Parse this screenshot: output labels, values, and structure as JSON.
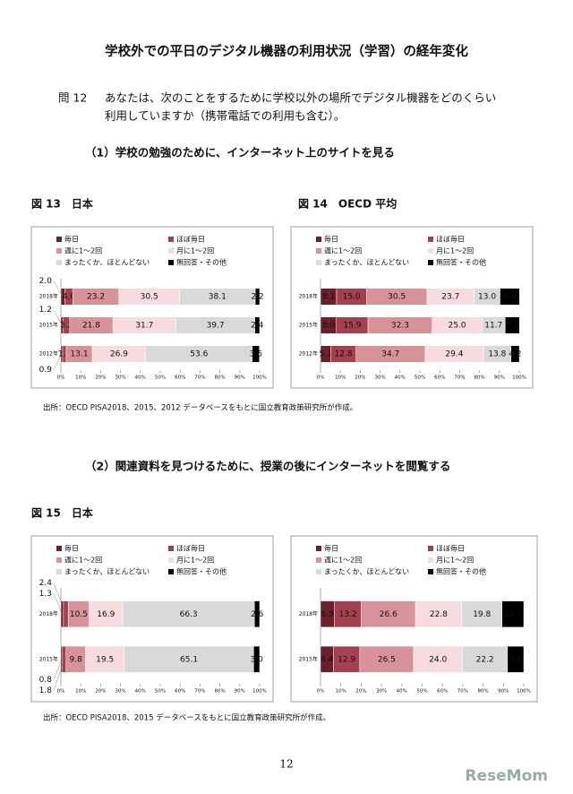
{
  "header": {
    "title": "学校外での平日のデジタル機器の利用状況（学習）の経年変化"
  },
  "question": {
    "number": "問 12",
    "text_line1": "あなたは、次のことをするために学校以外の場所でデジタル機器をどのくらい",
    "text_line2": "利用していますか（携帯電話での利用も含む）。"
  },
  "sections": [
    {
      "heading": "（1）学校の勉強のために、インターネット上のサイトを見る",
      "source": "出所：OECD PISA2018、2015、2012 データベースをもとに国立教育政策研究所が作成。"
    },
    {
      "heading": "（2）関連資料を見つけるために、授業の後にインターネットを閲覧する",
      "source": "出所：OECD PISA2018、2015 データベースをもとに国立教育政策研究所が作成。"
    }
  ],
  "page_number": "12",
  "watermark": "ReseMom",
  "chart_data": [
    {
      "type": "bar",
      "orientation": "horizontal",
      "stacked": true,
      "title": "図 13　日本",
      "categories": [
        "2018年",
        "2015年",
        "2012年"
      ],
      "series": [
        {
          "name": "毎日",
          "color": "#6d1f2b",
          "values": [
            2.0,
            1.2,
            0.9
          ],
          "value_labels": [
            "2.0",
            "1.2",
            "0.9"
          ]
        },
        {
          "name": "ほぼ毎日",
          "color": "#a5404f",
          "values": [
            4.0,
            3.2,
            1.8
          ],
          "value_labels": [
            "4.0",
            "3.2",
            "1.8"
          ]
        },
        {
          "name": "週に1～2回",
          "color": "#d8939a",
          "values": [
            23.2,
            21.8,
            13.1
          ],
          "value_labels": [
            "23.2",
            "21.8",
            "13.1"
          ]
        },
        {
          "name": "月に1～2回",
          "color": "#f6dcdf",
          "values": [
            30.5,
            31.7,
            26.9
          ],
          "value_labels": [
            "30.5",
            "31.7",
            "26.9"
          ]
        },
        {
          "name": "まったくか、ほとんどない",
          "color": "#d9d9d9",
          "values": [
            38.1,
            39.7,
            53.6
          ],
          "value_labels": [
            "38.1",
            "39.7",
            "53.6"
          ]
        },
        {
          "name": "無回答・その他",
          "color": "#000000",
          "values": [
            2.2,
            2.4,
            3.6
          ],
          "value_labels": [
            "2.2",
            "2.4",
            "3.6"
          ]
        }
      ],
      "xlim": [
        0,
        100
      ],
      "xticks": [
        {
          "value": 0,
          "label": "0%"
        },
        {
          "value": 10,
          "label": "10%"
        },
        {
          "value": 20,
          "label": "20%"
        },
        {
          "value": 30,
          "label": "30%"
        },
        {
          "value": 40,
          "label": "40%"
        },
        {
          "value": 50,
          "label": "50%"
        },
        {
          "value": 60,
          "label": "60%"
        },
        {
          "value": 70,
          "label": "70%"
        },
        {
          "value": 80,
          "label": "80%"
        },
        {
          "value": 90,
          "label": "90%"
        },
        {
          "value": 100,
          "label": "100%"
        }
      ]
    },
    {
      "type": "bar",
      "orientation": "horizontal",
      "stacked": true,
      "title": "図 14　OECD 平均",
      "categories": [
        "2018年",
        "2015年",
        "2012年"
      ],
      "series": [
        {
          "name": "毎日",
          "color": "#6d1f2b",
          "values": [
            8.1,
            8.0,
            5.1
          ],
          "value_labels": [
            "8.1",
            "8.0",
            "5.1"
          ]
        },
        {
          "name": "ほぼ毎日",
          "color": "#a5404f",
          "values": [
            15.0,
            15.9,
            12.8
          ],
          "value_labels": [
            "15.0",
            "15.9",
            "12.8"
          ]
        },
        {
          "name": "週に1～2回",
          "color": "#d8939a",
          "values": [
            30.5,
            32.3,
            34.7
          ],
          "value_labels": [
            "30.5",
            "32.3",
            "34.7"
          ]
        },
        {
          "name": "月に1～2回",
          "color": "#f6dcdf",
          "values": [
            23.7,
            25.0,
            29.4
          ],
          "value_labels": [
            "23.7",
            "25.0",
            "29.4"
          ]
        },
        {
          "name": "まったくか、ほとんどない",
          "color": "#d9d9d9",
          "values": [
            13.0,
            11.7,
            13.8
          ],
          "value_labels": [
            "13.0",
            "11.7",
            "13.8"
          ]
        },
        {
          "name": "無回答・その他",
          "color": "#000000",
          "values": [
            9.8,
            7.2,
            4.2
          ],
          "value_labels": [
            "9.8",
            "7.2",
            "4.2"
          ]
        }
      ],
      "xlim": [
        0,
        100
      ],
      "xticks": [
        {
          "value": 0,
          "label": "0%"
        },
        {
          "value": 10,
          "label": "10%"
        },
        {
          "value": 20,
          "label": "20%"
        },
        {
          "value": 30,
          "label": "30%"
        },
        {
          "value": 40,
          "label": "40%"
        },
        {
          "value": 50,
          "label": "50%"
        },
        {
          "value": 60,
          "label": "60%"
        },
        {
          "value": 70,
          "label": "70%"
        },
        {
          "value": 80,
          "label": "80%"
        },
        {
          "value": 90,
          "label": "90%"
        },
        {
          "value": 100,
          "label": "100%"
        }
      ]
    },
    {
      "type": "bar",
      "orientation": "horizontal",
      "stacked": true,
      "title": "図 15　日本",
      "categories": [
        "2018年",
        "2015年"
      ],
      "series": [
        {
          "name": "毎日",
          "color": "#6d1f2b",
          "values": [
            1.3,
            0.8
          ],
          "value_labels": [
            "1.3",
            "0.8"
          ]
        },
        {
          "name": "ほぼ毎日",
          "color": "#a5404f",
          "values": [
            2.4,
            1.8
          ],
          "value_labels": [
            "2.4",
            "1.8"
          ]
        },
        {
          "name": "週に1～2回",
          "color": "#d8939a",
          "values": [
            10.5,
            9.8
          ],
          "value_labels": [
            "10.5",
            "9.8"
          ]
        },
        {
          "name": "月に1～2回",
          "color": "#f6dcdf",
          "values": [
            16.9,
            19.5
          ],
          "value_labels": [
            "16.9",
            "19.5"
          ]
        },
        {
          "name": "まったくか、ほとんどない",
          "color": "#d9d9d9",
          "values": [
            66.3,
            65.1
          ],
          "value_labels": [
            "66.3",
            "65.1"
          ]
        },
        {
          "name": "無回答・その他",
          "color": "#000000",
          "values": [
            2.6,
            3.0
          ],
          "value_labels": [
            "2.6",
            "3.0"
          ]
        }
      ],
      "xlim": [
        0,
        100
      ],
      "xticks": [
        {
          "value": 0,
          "label": "0%"
        },
        {
          "value": 10,
          "label": "10%"
        },
        {
          "value": 20,
          "label": "20%"
        },
        {
          "value": 30,
          "label": "30%"
        },
        {
          "value": 40,
          "label": "40%"
        },
        {
          "value": 50,
          "label": "50%"
        },
        {
          "value": 60,
          "label": "60%"
        },
        {
          "value": 70,
          "label": "70%"
        },
        {
          "value": 80,
          "label": "80%"
        },
        {
          "value": 90,
          "label": "90%"
        },
        {
          "value": 100,
          "label": "100%"
        }
      ]
    },
    {
      "type": "bar",
      "orientation": "horizontal",
      "stacked": true,
      "categories": [
        "2018年",
        "2015年"
      ],
      "series": [
        {
          "name": "毎日",
          "color": "#6d1f2b",
          "values": [
            6.9,
            6.4
          ],
          "value_labels": [
            "6.9",
            "6.4"
          ]
        },
        {
          "name": "ほぼ毎日",
          "color": "#a5404f",
          "values": [
            13.2,
            12.9
          ],
          "value_labels": [
            "13.2",
            "12.9"
          ]
        },
        {
          "name": "週に1～2回",
          "color": "#d8939a",
          "values": [
            26.6,
            26.5
          ],
          "value_labels": [
            "26.6",
            "26.5"
          ]
        },
        {
          "name": "月に1～2回",
          "color": "#f6dcdf",
          "values": [
            22.8,
            24.0
          ],
          "value_labels": [
            "22.8",
            "24.0"
          ]
        },
        {
          "name": "まったくか、ほとんどない",
          "color": "#d9d9d9",
          "values": [
            19.8,
            22.2
          ],
          "value_labels": [
            "19.8",
            "22.2"
          ]
        },
        {
          "name": "無回答・その他",
          "color": "#000000",
          "values": [
            10.7,
            8.0
          ],
          "value_labels": [
            "10.7",
            "8.0"
          ]
        }
      ],
      "xlim": [
        0,
        100
      ],
      "xticks": [
        {
          "value": 0,
          "label": "0%"
        },
        {
          "value": 10,
          "label": "10%"
        },
        {
          "value": 20,
          "label": "20%"
        },
        {
          "value": 30,
          "label": "30%"
        },
        {
          "value": 40,
          "label": "40%"
        },
        {
          "value": 50,
          "label": "50%"
        },
        {
          "value": 60,
          "label": "60%"
        },
        {
          "value": 70,
          "label": "70%"
        },
        {
          "value": 80,
          "label": "80%"
        },
        {
          "value": 90,
          "label": "90%"
        },
        {
          "value": 100,
          "label": "100%"
        }
      ]
    }
  ]
}
